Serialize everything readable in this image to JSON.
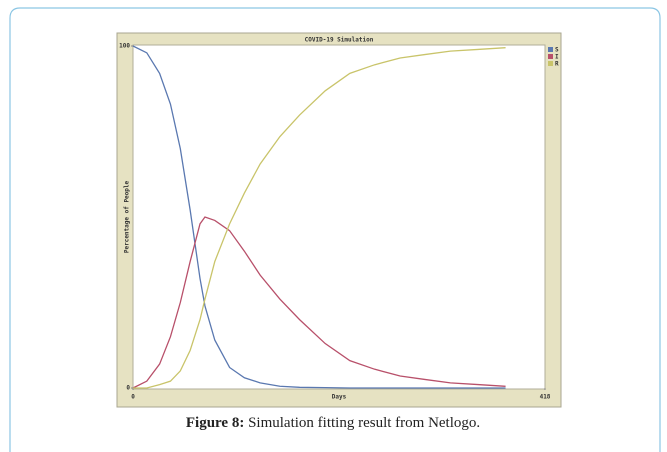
{
  "chart_data": {
    "type": "line",
    "title": "COVID-19 Simulation",
    "x_label": "Days",
    "y_label": "Percentage of People",
    "x": [
      0,
      14,
      27,
      38,
      48,
      58,
      68,
      73,
      83,
      98,
      113,
      129,
      149,
      169,
      195,
      220,
      245,
      271,
      296,
      322,
      350,
      378
    ],
    "series": [
      {
        "name": "S",
        "color": "#5a78b0",
        "values": [
          100,
          98,
          92,
          83,
          70,
          52,
          32,
          24,
          14,
          6,
          3,
          1.5,
          0.5,
          0.2,
          0.1,
          0,
          0,
          0,
          0,
          0,
          0,
          0
        ]
      },
      {
        "name": "I",
        "color": "#b8506a",
        "values": [
          0,
          2,
          7,
          15,
          25,
          37,
          48,
          50,
          49,
          46,
          40,
          33,
          26,
          20,
          13,
          8,
          5.5,
          3.5,
          2.5,
          1.5,
          1,
          0.5
        ]
      },
      {
        "name": "R",
        "color": "#c9c46a",
        "values": [
          0,
          0,
          1,
          2,
          5,
          11,
          20,
          26,
          37,
          48,
          57,
          65.5,
          73.5,
          79.8,
          86.9,
          92,
          94.5,
          96.5,
          97.5,
          98.5,
          99,
          99.5
        ]
      }
    ],
    "xlim": [
      0,
      418
    ],
    "ylim": [
      0,
      100
    ],
    "xticks": [
      0,
      418
    ],
    "yticks": [
      0,
      100
    ]
  },
  "caption": {
    "label": "Figure 8:",
    "text": "Simulation fitting result from Netlogo."
  }
}
